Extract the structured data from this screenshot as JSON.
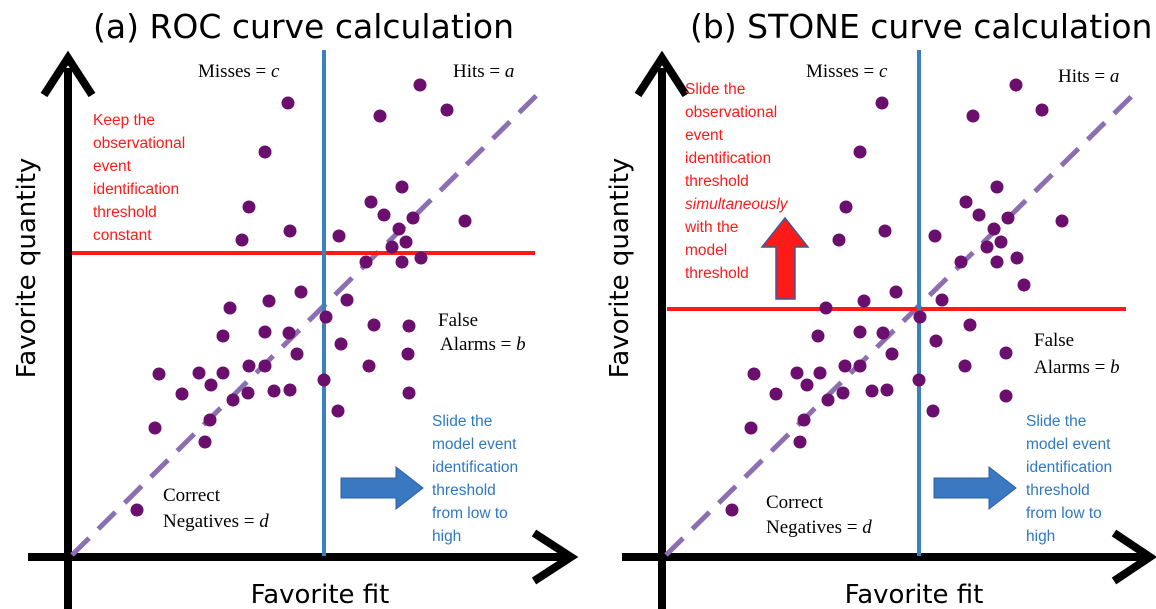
{
  "colors": {
    "points": "#6b0f6e",
    "model_threshold": "#3a7fc0",
    "event_threshold": "#ff1a1a",
    "diagonal": "#8b6fb0",
    "arrow_blue": "#3a78c2",
    "arrow_red": "#ff1a1a",
    "red_text": "#ff1a1a",
    "blue_text": "#2f78c2"
  },
  "panels": [
    {
      "title": "(a) ROC curve calculation",
      "y_axis_label": "Favorite quantity",
      "x_axis_label": "Favorite fit",
      "quadrants": {
        "misses_text": "Misses = ",
        "misses_var": "c",
        "hits_text": "Hits = ",
        "hits_var": "a",
        "false_line1": "False",
        "false_line2": "Alarms = ",
        "false_var": "b",
        "correct_line1": "Correct",
        "correct_line2": "Negatives = ",
        "correct_var": "d"
      },
      "red_note": [
        "Keep the",
        "observational",
        "event",
        "identification",
        "threshold",
        "constant"
      ],
      "blue_note": [
        "Slide the",
        "model event",
        "identification",
        "threshold",
        "from low to",
        "high"
      ]
    },
    {
      "title": "(b) STONE curve calculation",
      "y_axis_label": "Favorite quantity",
      "x_axis_label": "Favorite fit",
      "quadrants": {
        "misses_text": "Misses = ",
        "misses_var": "c",
        "hits_text": "Hits = ",
        "hits_var": "a",
        "false_line1": "False",
        "false_line2": "Alarms = ",
        "false_var": "b",
        "correct_line1": "Correct",
        "correct_line2": "Negatives = ",
        "correct_var": "d"
      },
      "red_note": [
        "Slide the",
        "observational",
        "event",
        "identification",
        "threshold",
        "simultaneously",
        "with the",
        "model",
        "threshold"
      ],
      "blue_note": [
        "Slide the",
        "model event",
        "identification",
        "threshold",
        "from low to",
        "high"
      ]
    }
  ]
}
